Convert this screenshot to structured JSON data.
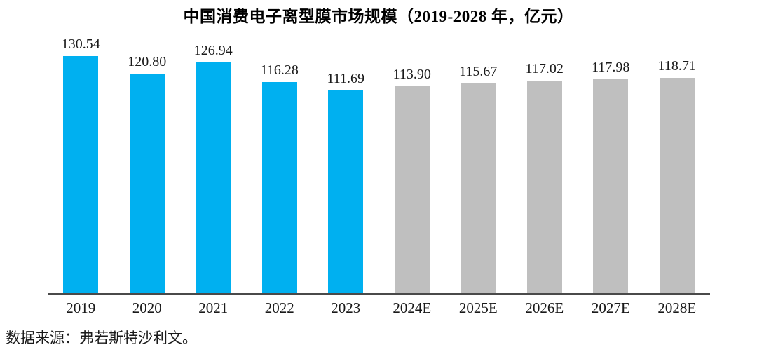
{
  "source_note": "数据来源：弗若斯特沙利文。",
  "colors": {
    "actual_bar": "#00B0F0",
    "estimate_bar": "#BFBFBF",
    "axis_line": "#4a4a4a",
    "text": "#000000"
  },
  "chart_data": {
    "type": "bar",
    "title": "中国消费电子离型膜市场规模（2019-2028 年，亿元）",
    "categories": [
      "2019",
      "2020",
      "2021",
      "2022",
      "2023",
      "2024E",
      "2025E",
      "2026E",
      "2027E",
      "2028E"
    ],
    "values": [
      130.54,
      120.8,
      126.94,
      116.28,
      111.69,
      113.9,
      115.67,
      117.02,
      117.98,
      118.71
    ],
    "value_labels": [
      "130.54",
      "120.80",
      "126.94",
      "116.28",
      "111.69",
      "113.90",
      "115.67",
      "117.02",
      "117.98",
      "118.71"
    ],
    "bar_kinds": [
      "actual",
      "actual",
      "actual",
      "actual",
      "actual",
      "estimate",
      "estimate",
      "estimate",
      "estimate",
      "estimate"
    ],
    "bar_colors": {
      "actual": "#00B0F0",
      "estimate": "#BFBFBF"
    },
    "xlabel": "",
    "ylabel": "",
    "ylim": [
      0,
      140
    ],
    "grid": false,
    "legend": "none",
    "y_axis_ticks_visible": false
  }
}
